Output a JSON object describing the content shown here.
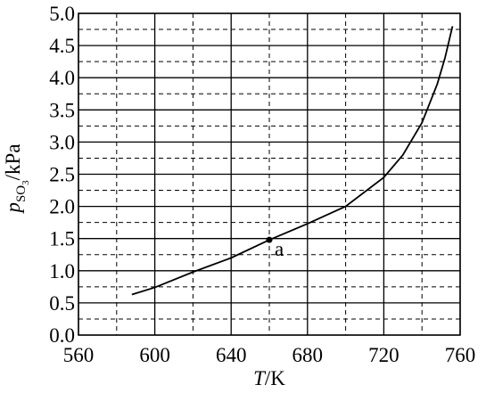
{
  "chart_data": {
    "type": "line",
    "x_label": [
      "T",
      "/K"
    ],
    "y_label": [
      "p",
      "SO",
      "3",
      "/kPa"
    ],
    "x": [
      588,
      600,
      620,
      640,
      660,
      680,
      700,
      720,
      730,
      740,
      748,
      752,
      756
    ],
    "series": [
      {
        "color": "#000000",
        "values": [
          0.63,
          0.74,
          0.98,
          1.2,
          1.48,
          1.73,
          2.0,
          2.45,
          2.8,
          3.3,
          3.9,
          4.3,
          4.8
        ]
      }
    ],
    "points": [
      {
        "x": 660,
        "y": 1.48,
        "label": "a"
      }
    ],
    "xlim": [
      560,
      760
    ],
    "ylim": [
      0,
      5
    ],
    "xticks": [
      560,
      600,
      640,
      680,
      720,
      760
    ],
    "yticks": [
      {
        "value": 0,
        "label": "0.0"
      },
      0.5,
      {
        "value": 1,
        "label": "1.0"
      },
      1.5,
      {
        "value": 2,
        "label": "2.0"
      },
      2.5,
      {
        "value": 3,
        "label": "3.0"
      },
      3.5,
      {
        "value": 4,
        "label": "4.0"
      },
      4.5,
      {
        "value": 5,
        "label": "5.0"
      }
    ],
    "minor_xticks": [
      580,
      620,
      660,
      700,
      740
    ],
    "minor_yticks": [
      0.25,
      0.75,
      1.25,
      1.75,
      2.25,
      2.75,
      3.25,
      3.75,
      4.25,
      4.75
    ],
    "grid": true
  }
}
